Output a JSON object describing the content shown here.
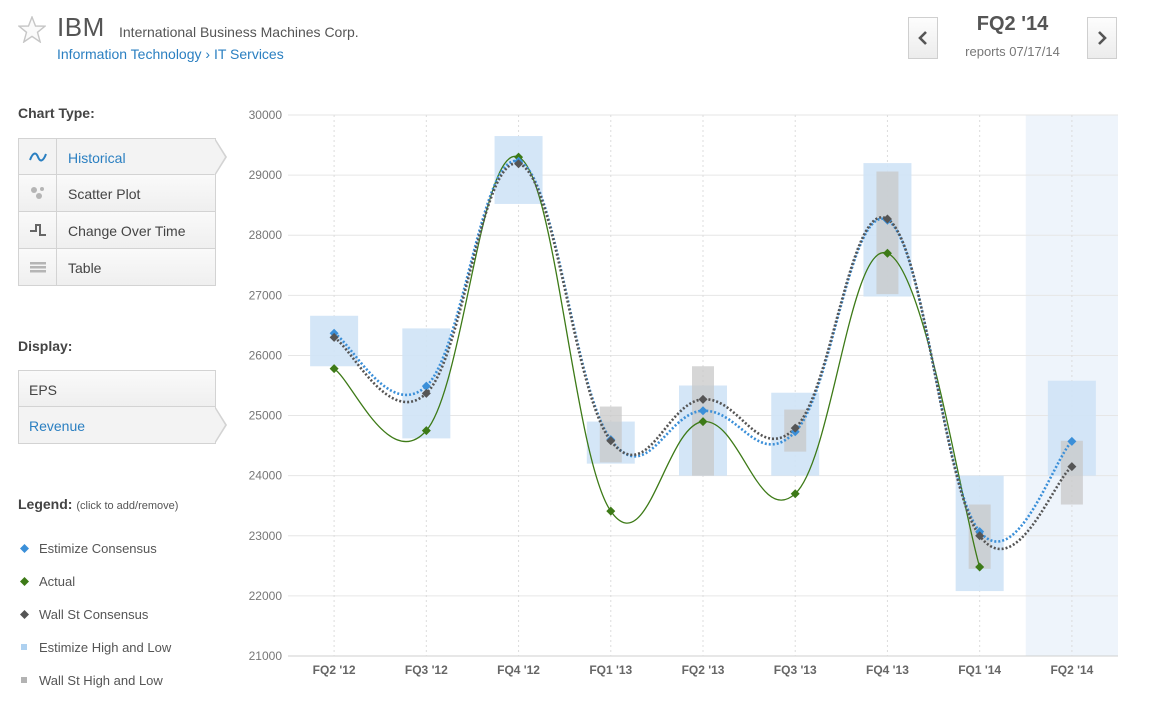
{
  "header": {
    "ticker": "IBM",
    "company": "International Business Machines Corp.",
    "sector": "Information Technology",
    "separator": "›",
    "industry": "IT Services",
    "quarter": "FQ2 '14",
    "reports": "reports 07/17/14"
  },
  "sidebar": {
    "chart_type_label": "Chart Type:",
    "chart_types": [
      {
        "label": "Historical",
        "icon": "wave-icon",
        "active": true
      },
      {
        "label": "Scatter Plot",
        "icon": "scatter-icon",
        "active": false
      },
      {
        "label": "Change Over Time",
        "icon": "step-icon",
        "active": false
      },
      {
        "label": "Table",
        "icon": "table-icon",
        "active": false
      }
    ],
    "display_label": "Display:",
    "display_options": [
      {
        "label": "EPS",
        "active": false
      },
      {
        "label": "Revenue",
        "active": true
      }
    ],
    "legend_label": "Legend:",
    "legend_hint": "(click to add/remove)",
    "legend": [
      {
        "label": "Estimize Consensus",
        "color": "#3b8fd8",
        "marker": "diamond"
      },
      {
        "label": "Actual",
        "color": "#3d7a17",
        "marker": "diamond"
      },
      {
        "label": "Wall St Consensus",
        "color": "#555555",
        "marker": "diamond"
      },
      {
        "label": "Estimize High and Low",
        "color": "#aed1f0",
        "marker": "square"
      },
      {
        "label": "Wall St High and Low",
        "color": "#b3b3b3",
        "marker": "square"
      }
    ]
  },
  "colors": {
    "accent": "#2a7fc1",
    "estimize": "#3b8fd8",
    "actual": "#3d7a17",
    "wallst": "#555555",
    "estimize_range": "#cfe3f6",
    "wallst_range": "#c8c8c8",
    "future_column": "#eef4fb"
  },
  "chart_data": {
    "type": "line",
    "categories": [
      "FQ2 '12",
      "FQ3 '12",
      "FQ4 '12",
      "FQ1 '13",
      "FQ2 '13",
      "FQ3 '13",
      "FQ4 '13",
      "FQ1 '14",
      "FQ2 '14"
    ],
    "ylim": [
      21000,
      30000
    ],
    "yticks": [
      21000,
      22000,
      23000,
      24000,
      25000,
      26000,
      27000,
      28000,
      29000,
      30000
    ],
    "grid": true,
    "highlighted_category": "FQ2 '14",
    "series": [
      {
        "name": "Estimize Consensus",
        "style": "dotted",
        "values": [
          26370,
          25490,
          29230,
          24600,
          25080,
          24730,
          28250,
          23070,
          24570
        ]
      },
      {
        "name": "Actual",
        "style": "solid",
        "values": [
          25780,
          24750,
          29300,
          23410,
          24900,
          23700,
          27700,
          22480,
          null
        ]
      },
      {
        "name": "Wall St Consensus",
        "style": "dotted",
        "values": [
          26300,
          25370,
          29190,
          24580,
          25270,
          24790,
          28270,
          23000,
          24150
        ]
      }
    ],
    "ranges": [
      {
        "name": "Estimize High and Low",
        "low": [
          25820,
          24620,
          28520,
          24200,
          24000,
          24000,
          26980,
          22080,
          24000
        ],
        "high": [
          26660,
          26450,
          29650,
          24900,
          25500,
          25380,
          29200,
          24000,
          25580
        ]
      },
      {
        "name": "Wall St High and Low",
        "low": [
          null,
          null,
          null,
          24220,
          24000,
          24400,
          27020,
          22450,
          23520
        ],
        "high": [
          null,
          null,
          null,
          25150,
          25820,
          25100,
          29060,
          23520,
          24580
        ]
      }
    ]
  }
}
